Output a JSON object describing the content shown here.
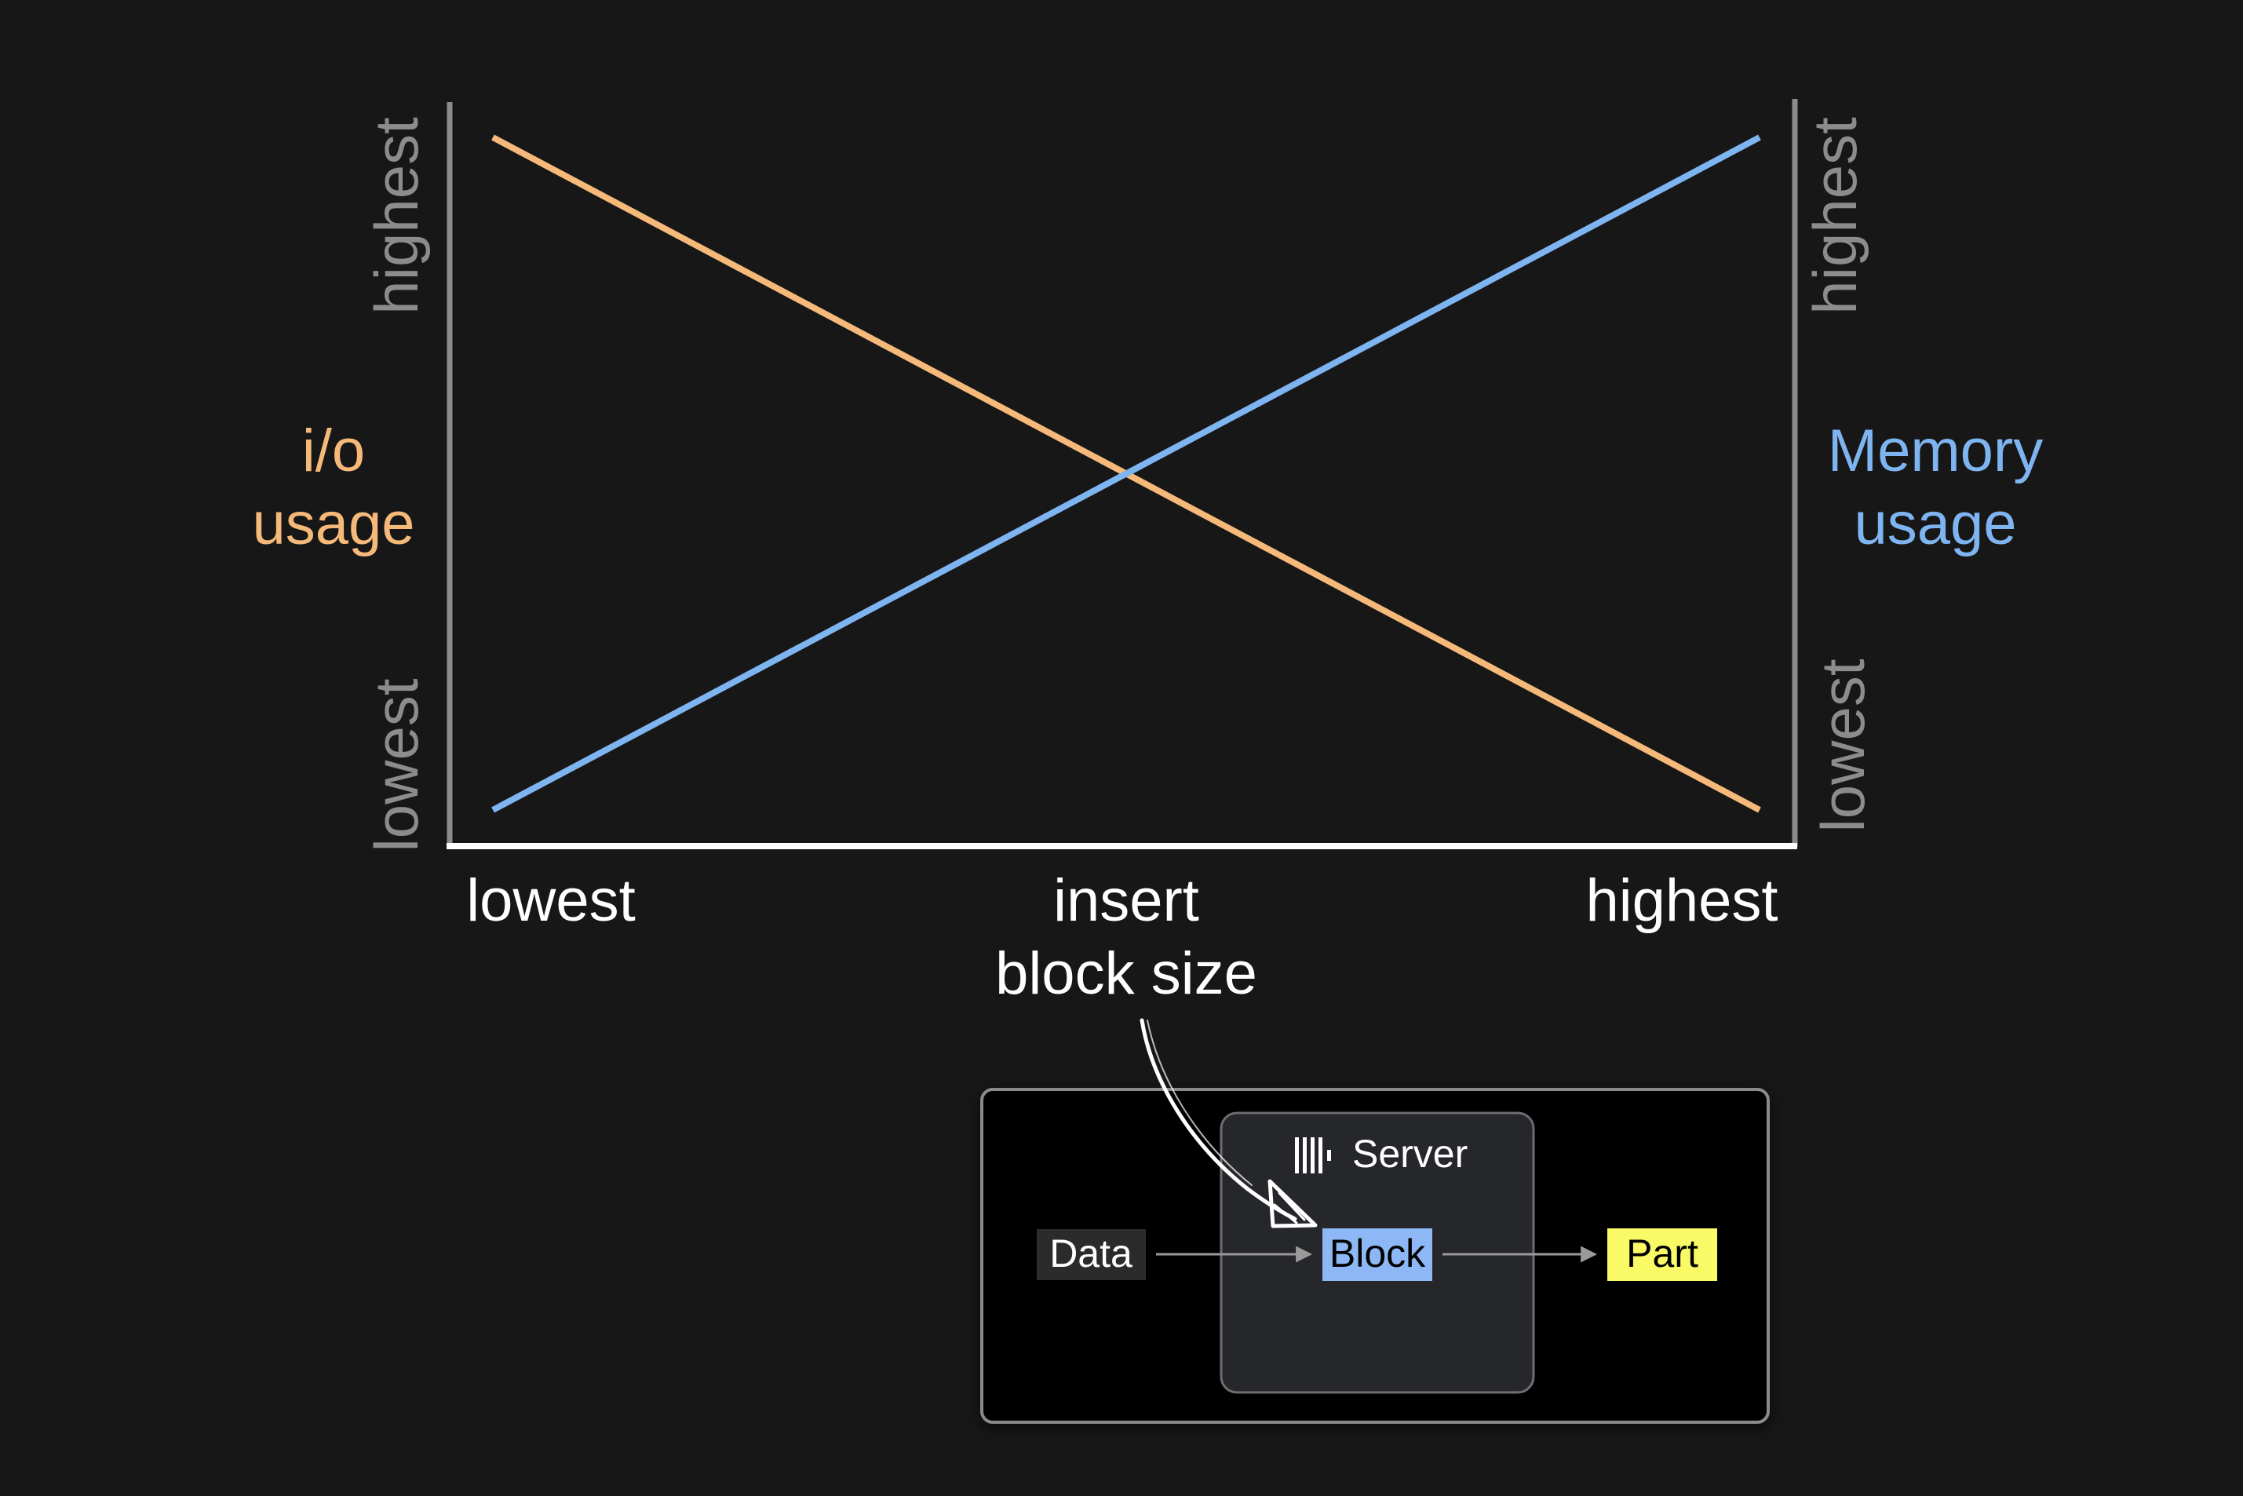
{
  "colors": {
    "background": "#171717",
    "io": "#F5B97A",
    "memory": "#7EB4F0",
    "axis_left": "#8C8C8C",
    "axis_bottom": "#FFFFFF",
    "block": "#8DB8F5",
    "part": "#FAFA66",
    "data": "#2B2B2B"
  },
  "chart": {
    "left_axis": {
      "high": "highest",
      "low": "lowest",
      "label_line1": "i/o",
      "label_line2": "usage"
    },
    "right_axis": {
      "high": "highest",
      "low": "lowest",
      "label_line1": "Memory",
      "label_line2": "usage"
    },
    "x_axis": {
      "low": "lowest",
      "label_line1": "insert",
      "label_line2": "block size",
      "high": "highest"
    }
  },
  "chart_data": {
    "type": "line",
    "x": [
      0,
      1
    ],
    "series": [
      {
        "name": "i/o usage",
        "values": [
          1,
          0
        ]
      },
      {
        "name": "Memory usage",
        "values": [
          0,
          1
        ]
      }
    ],
    "xlabel": "insert block size",
    "ylabel": "i/o usage",
    "ylabel_right": "Memory usage",
    "xlim": [
      0,
      1
    ],
    "ylim": [
      0,
      1
    ],
    "x_ticks": [
      "lowest",
      "highest"
    ],
    "y_ticks": [
      "lowest",
      "highest"
    ],
    "grid": false
  },
  "diagram": {
    "server_label": "Server",
    "server_icon": "clickhouse-logo-icon",
    "data_label": "Data",
    "block_label": "Block",
    "part_label": "Part"
  }
}
